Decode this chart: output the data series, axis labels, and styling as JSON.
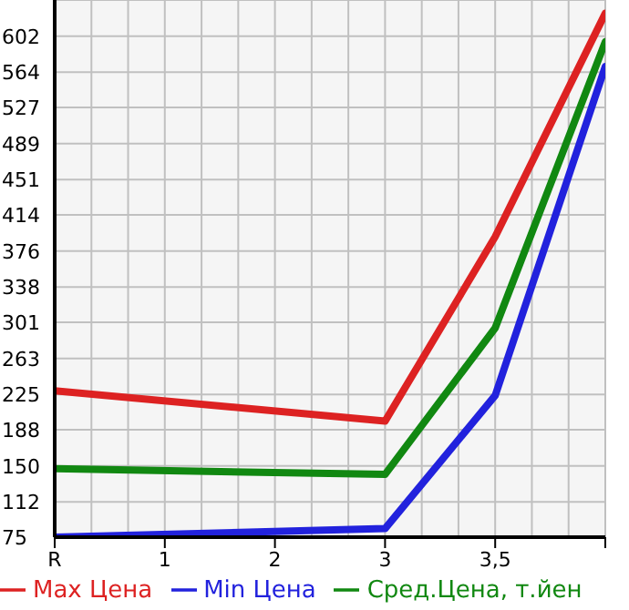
{
  "chart_data": {
    "type": "line",
    "categories": [
      "R",
      "1",
      "2",
      "3",
      "3,5",
      null
    ],
    "series": [
      {
        "name": "Max Цена",
        "color": "#dd2222",
        "values": [
          229,
          null,
          null,
          197,
          391,
          626
        ]
      },
      {
        "name": "Min Цена",
        "color": "#2222dd",
        "values": [
          75,
          null,
          null,
          84,
          224,
          570
        ]
      },
      {
        "name": "Сред.Цена, т.йен",
        "color": "#118811",
        "values": [
          147,
          null,
          null,
          141,
          295,
          596
        ]
      }
    ],
    "ylim": [
      75,
      640
    ],
    "yticks": [
      75,
      112,
      150,
      188,
      225,
      263,
      301,
      338,
      376,
      414,
      451,
      489,
      527,
      564,
      602
    ],
    "grid": true,
    "legend": "bottom",
    "marker": "none",
    "line_style": "solid"
  }
}
